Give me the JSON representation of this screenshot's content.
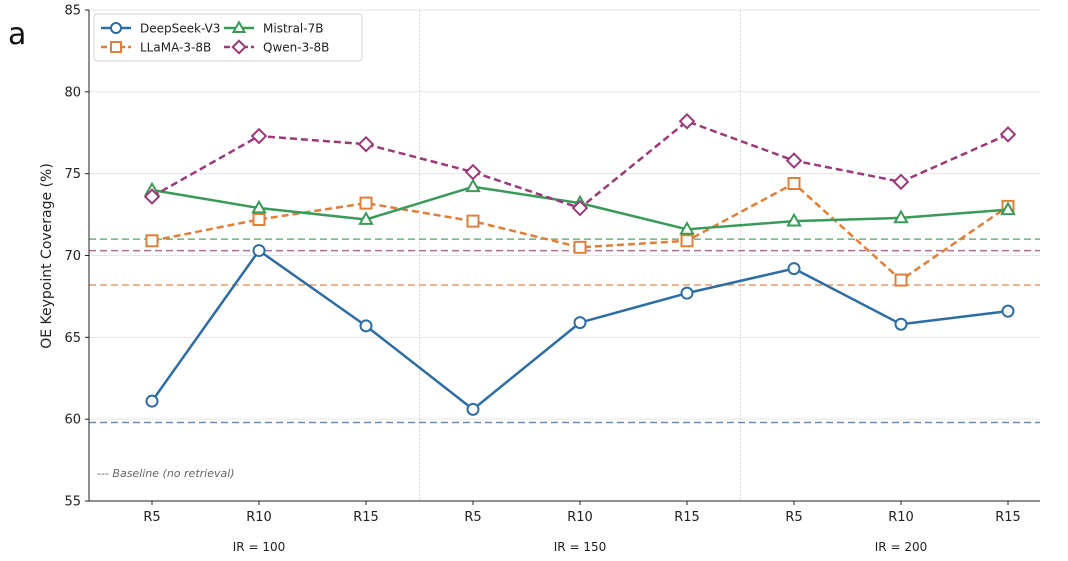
{
  "chart_data": {
    "type": "line",
    "panel_label": "a",
    "ylabel": "OE Keypoint Coverage (%)",
    "ylim": [
      55,
      85
    ],
    "yticks": [
      55,
      60,
      65,
      70,
      75,
      80,
      85
    ],
    "categories": [
      "R5",
      "R10",
      "R15",
      "R5",
      "R10",
      "R15",
      "R5",
      "R10",
      "R15"
    ],
    "groups": [
      {
        "label": "IR = 100",
        "start": 0,
        "end": 2
      },
      {
        "label": "IR = 150",
        "start": 3,
        "end": 5
      },
      {
        "label": "IR = 200",
        "start": 6,
        "end": 8
      }
    ],
    "series": [
      {
        "name": "DeepSeek-V3",
        "color": "#2e6da4",
        "marker": "circle",
        "dash": "solid",
        "values": [
          61.1,
          70.3,
          65.7,
          60.6,
          65.9,
          67.7,
          69.2,
          65.8,
          66.6
        ],
        "baseline": 59.8
      },
      {
        "name": "LLaMA-3-8B",
        "color": "#e07f3a",
        "marker": "square",
        "dash": "dashed",
        "values": [
          70.9,
          72.2,
          73.2,
          72.1,
          70.5,
          70.9,
          74.4,
          68.5,
          73.0
        ],
        "baseline": 68.2
      },
      {
        "name": "Mistral-7B",
        "color": "#3a9a5a",
        "marker": "triangle",
        "dash": "solid",
        "values": [
          74.0,
          72.9,
          72.2,
          74.2,
          73.2,
          71.6,
          72.1,
          72.3,
          72.8
        ],
        "baseline": 71.0
      },
      {
        "name": "Qwen-3-8B",
        "color": "#9b3a78",
        "marker": "diamond",
        "dash": "dashed",
        "values": [
          73.6,
          77.3,
          76.8,
          75.1,
          72.9,
          78.2,
          75.8,
          74.5,
          77.4
        ],
        "baseline": 70.3
      }
    ],
    "annotation": "--- Baseline (no retrieval)",
    "grid": "horizontal",
    "legend": "top-left"
  }
}
